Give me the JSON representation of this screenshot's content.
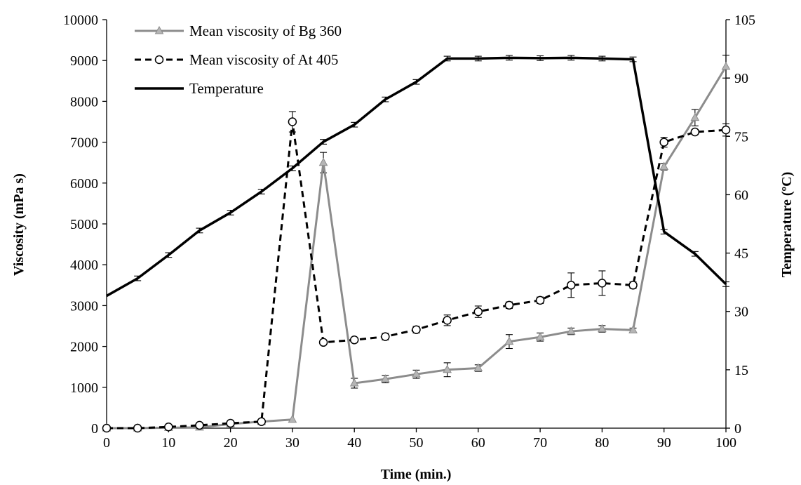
{
  "chart_data": {
    "type": "line",
    "xlabel": "Time (min.)",
    "ylabel": "Viscosity (mPa s)",
    "y2label": "Temperature (ºC)",
    "xlim": [
      0,
      100
    ],
    "ylim": [
      0,
      10000
    ],
    "y2lim": [
      0,
      105
    ],
    "x_ticks": [
      0,
      10,
      20,
      30,
      40,
      50,
      60,
      70,
      80,
      90,
      100
    ],
    "y_ticks": [
      0,
      1000,
      2000,
      3000,
      4000,
      5000,
      6000,
      7000,
      8000,
      9000,
      10000
    ],
    "y2_ticks": [
      0,
      15,
      30,
      45,
      60,
      75,
      90,
      105
    ],
    "grid": false,
    "legend_position": "top-left",
    "series": [
      {
        "name": "Mean viscosity of Bg 360",
        "axis": "left",
        "color": "#8c8c8c",
        "line_style": "solid",
        "marker": "triangle",
        "x": [
          0,
          5,
          10,
          15,
          20,
          25,
          30,
          35,
          40,
          45,
          50,
          55,
          60,
          65,
          70,
          75,
          80,
          85,
          90,
          95,
          100
        ],
        "y": [
          0,
          0,
          10,
          20,
          100,
          160,
          210,
          6500,
          1100,
          1200,
          1320,
          1430,
          1470,
          2120,
          2230,
          2370,
          2430,
          2400,
          6400,
          7600,
          8850
        ],
        "err": [
          0,
          0,
          0,
          0,
          0,
          0,
          0,
          250,
          120,
          90,
          100,
          170,
          80,
          170,
          100,
          80,
          80,
          50,
          80,
          200,
          280
        ]
      },
      {
        "name": "Mean viscosity of At 405",
        "axis": "left",
        "color": "#000000",
        "line_style": "dashed",
        "marker": "circle",
        "x": [
          0,
          5,
          10,
          15,
          20,
          25,
          30,
          35,
          40,
          45,
          50,
          55,
          60,
          65,
          70,
          75,
          80,
          85,
          90,
          95,
          100
        ],
        "y": [
          0,
          0,
          30,
          70,
          120,
          160,
          7500,
          2100,
          2160,
          2240,
          2410,
          2640,
          2850,
          3010,
          3130,
          3500,
          3550,
          3500,
          7000,
          7250,
          7300
        ],
        "err": [
          0,
          0,
          0,
          0,
          0,
          0,
          250,
          60,
          40,
          80,
          80,
          130,
          140,
          80,
          80,
          300,
          300,
          80,
          120,
          60,
          150
        ]
      },
      {
        "name": "Temperature",
        "axis": "right",
        "color": "#000000",
        "line_style": "solid",
        "marker": "none",
        "x": [
          0,
          5,
          10,
          15,
          20,
          25,
          30,
          35,
          40,
          45,
          50,
          55,
          60,
          65,
          70,
          75,
          80,
          85,
          90,
          95,
          100
        ],
        "y": [
          34,
          38.5,
          44.5,
          50.8,
          55.4,
          60.8,
          66.8,
          73.6,
          78,
          84.5,
          89,
          95,
          95,
          95.2,
          95.1,
          95.2,
          95,
          94.8,
          50.5,
          44.8,
          37
        ],
        "err": [
          0,
          0.6,
          0.6,
          0.6,
          0.6,
          0.6,
          0.6,
          0.6,
          0.6,
          0.6,
          0.6,
          0.6,
          0.6,
          0.6,
          0.6,
          0.6,
          0.6,
          0.6,
          0.6,
          0.6,
          0.6
        ]
      }
    ]
  }
}
